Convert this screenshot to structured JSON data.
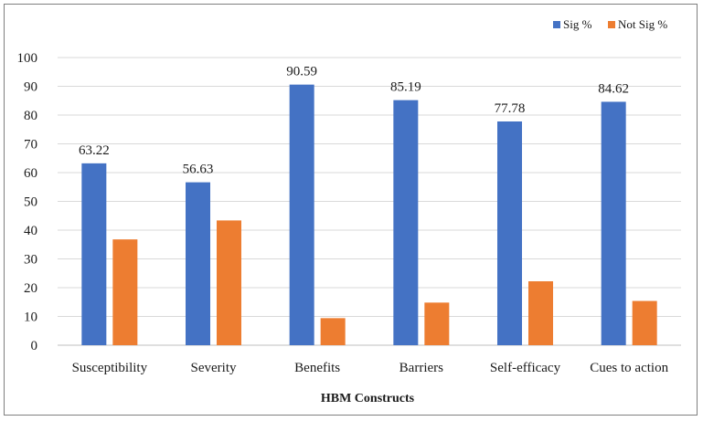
{
  "chart_data": {
    "type": "bar",
    "title": "",
    "xlabel": "HBM Constructs",
    "ylabel": "",
    "ylim": [
      0,
      100
    ],
    "yticks": [
      0,
      10,
      20,
      30,
      40,
      50,
      60,
      70,
      80,
      90,
      100
    ],
    "grid": true,
    "legend_position": "top-right",
    "categories": [
      "Susceptibility",
      "Severity",
      "Benefits",
      "Barriers",
      "Self-efficacy",
      "Cues to action"
    ],
    "series": [
      {
        "name": "Sig %",
        "color": "#4472c4",
        "values": [
          63.22,
          56.63,
          90.59,
          85.19,
          77.78,
          84.62
        ],
        "labels": [
          "63.22",
          "56.63",
          "90.59",
          "85.19",
          "77.78",
          "84.62"
        ]
      },
      {
        "name": "Not Sig %",
        "color": "#ed7d31",
        "values": [
          36.78,
          43.37,
          9.41,
          14.81,
          22.22,
          15.38
        ],
        "labels": null
      }
    ]
  }
}
